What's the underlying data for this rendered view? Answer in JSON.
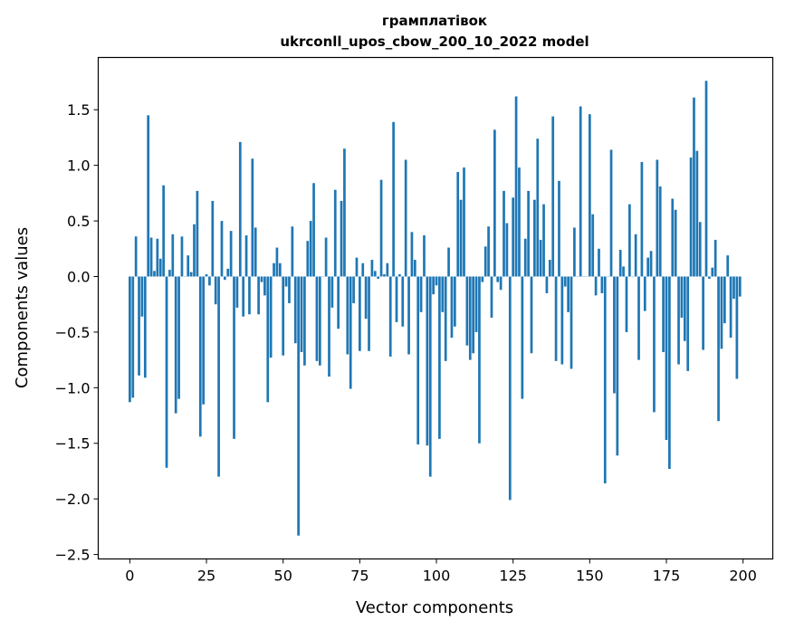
{
  "chart_data": {
    "type": "bar",
    "title_line1": "грамплатівок",
    "title_line2": "ukrconll_upos_cbow_200_10_2022 model",
    "xlabel": "Vector components",
    "ylabel": "Components values",
    "xlim": [
      -10.3,
      209.7
    ],
    "ylim": [
      -2.54,
      1.97
    ],
    "xticks": [
      0,
      25,
      50,
      75,
      100,
      125,
      150,
      175,
      200
    ],
    "xtick_labels": [
      "0",
      "25",
      "50",
      "75",
      "100",
      "125",
      "150",
      "175",
      "200"
    ],
    "yticks": [
      -2.5,
      -2.0,
      -1.5,
      -1.0,
      -0.5,
      0.0,
      0.5,
      1.0,
      1.5
    ],
    "ytick_labels": [
      "−2.5",
      "−2.0",
      "−1.5",
      "−1.0",
      "−0.5",
      "0.0",
      "0.5",
      "1.0",
      "1.5"
    ],
    "bar_color": "#1f77b4",
    "grid": false,
    "values": [
      -1.13,
      -1.09,
      0.36,
      -0.89,
      -0.36,
      -0.91,
      1.45,
      0.35,
      0.05,
      0.34,
      0.16,
      0.82,
      -1.72,
      0.06,
      0.38,
      -1.23,
      -1.1,
      0.36,
      0.0,
      0.19,
      0.04,
      0.47,
      0.77,
      -1.44,
      -1.15,
      0.02,
      -0.08,
      0.68,
      -0.25,
      -1.8,
      0.5,
      -0.03,
      0.07,
      0.41,
      -1.46,
      -0.28,
      1.21,
      -0.36,
      0.37,
      -0.34,
      1.06,
      0.44,
      -0.34,
      -0.05,
      -0.17,
      -1.13,
      -0.73,
      0.12,
      0.26,
      0.12,
      -0.71,
      -0.09,
      -0.24,
      0.45,
      -0.6,
      -2.33,
      -0.68,
      -0.8,
      0.32,
      0.5,
      0.84,
      -0.76,
      -0.8,
      0.0,
      0.35,
      -0.9,
      -0.28,
      0.78,
      -0.47,
      0.68,
      1.15,
      -0.7,
      -1.01,
      -0.24,
      0.17,
      -0.67,
      0.12,
      -0.38,
      -0.67,
      0.15,
      0.05,
      -0.02,
      0.87,
      0.02,
      0.12,
      -0.72,
      1.39,
      -0.41,
      0.02,
      -0.45,
      1.05,
      -0.7,
      0.4,
      0.15,
      -1.51,
      -0.32,
      0.37,
      -1.52,
      -1.8,
      -0.16,
      -0.08,
      -1.46,
      -0.32,
      -0.76,
      0.26,
      -0.55,
      -0.45,
      0.94,
      0.69,
      0.98,
      -0.62,
      -0.75,
      -0.69,
      -0.5,
      -1.5,
      -0.05,
      0.27,
      0.45,
      -0.37,
      1.32,
      -0.05,
      -0.12,
      0.77,
      0.48,
      -2.01,
      0.71,
      1.62,
      0.98,
      -1.1,
      0.34,
      0.77,
      -0.69,
      0.69,
      1.24,
      0.33,
      0.65,
      -0.15,
      0.15,
      1.44,
      -0.76,
      0.86,
      -0.79,
      -0.09,
      -0.32,
      -0.83,
      0.44,
      0.0,
      1.53,
      0.0,
      0.0,
      1.46,
      0.56,
      -0.17,
      0.25,
      -0.15,
      -1.86,
      0.0,
      1.14,
      -1.05,
      -1.61,
      0.24,
      0.09,
      -0.5,
      0.65,
      0.0,
      0.38,
      -0.75,
      1.03,
      -0.31,
      0.17,
      0.23,
      -1.22,
      1.05,
      0.81,
      -0.68,
      -1.47,
      -1.73,
      0.7,
      0.6,
      -0.79,
      -0.37,
      -0.58,
      -0.85,
      1.07,
      1.61,
      1.13,
      0.49,
      -0.66,
      1.76,
      -0.02,
      0.08,
      0.33,
      -1.3,
      -0.65,
      -0.42,
      0.19,
      -0.55,
      -0.2,
      -0.92,
      -0.18
    ]
  }
}
